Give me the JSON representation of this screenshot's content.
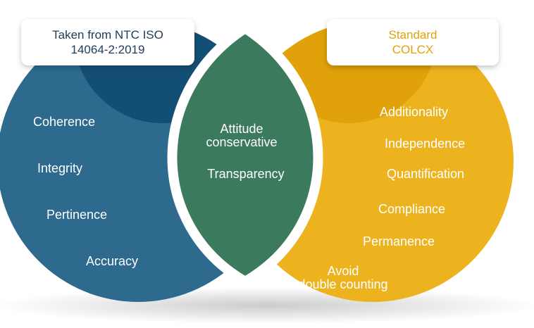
{
  "left_box": {
    "line1": "Taken from NTC ISO",
    "line2": "14064-2:2019"
  },
  "right_box": {
    "line1": "Standard",
    "line2": "COLCX"
  },
  "left_items": [
    "Coherence",
    "Integrity",
    "Pertinence",
    "Accuracy"
  ],
  "center_items": {
    "item1_line1": "Attitude",
    "item1_line2": "conservative",
    "item2": "Transparency"
  },
  "right_items": [
    "Additionality",
    "Independence",
    "Quantification",
    "Compliance",
    "Permanence"
  ],
  "right_last": {
    "line1": "Avoid",
    "line2": "double counting"
  },
  "colors": {
    "left_circle": "#2d6a8e",
    "left_top": "#134f74",
    "right_circle": "#edb31f",
    "right_top": "#e0a10a",
    "center": "#3c7a5e",
    "separator": "#ffffff"
  }
}
